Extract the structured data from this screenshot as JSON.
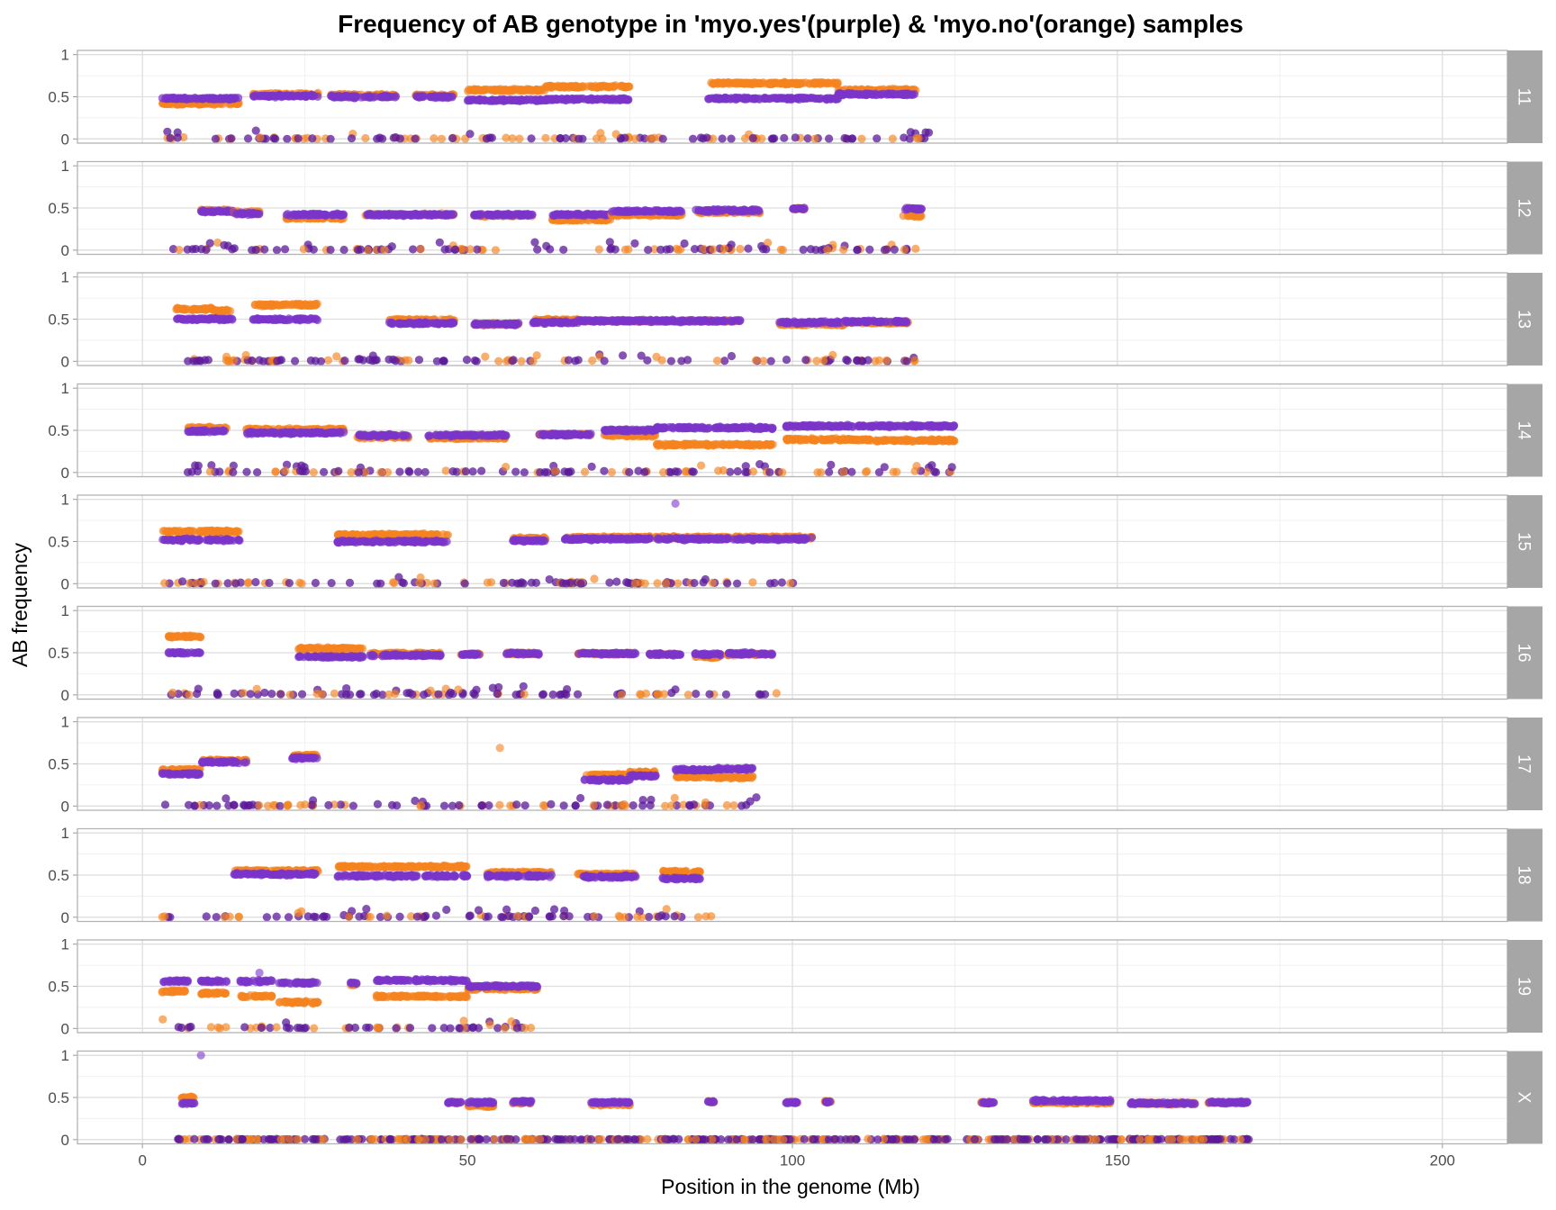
{
  "chart_data": {
    "type": "scatter",
    "title": "Frequency of AB genotype in 'myo.yes'(purple) & 'myo.no'(orange) samples",
    "xlabel": "Position in the genome (Mb)",
    "ylabel": "AB frequency",
    "xlim": [
      -10,
      210
    ],
    "ylim": [
      -0.05,
      1.05
    ],
    "x_ticks": [
      0,
      50,
      100,
      150,
      200
    ],
    "y_ticks": [
      0,
      0.5,
      1
    ],
    "y_tick_labels": [
      "0",
      "0.5",
      "1"
    ],
    "grid": true,
    "legend": "none",
    "colors": {
      "myo_yes": "#7b35c9",
      "myo_no": "#f5821f",
      "zero_line": "#5c1a99",
      "strip": "#a6a6a6",
      "panel_border": "#b3b3b3"
    },
    "series": [
      {
        "color_key": "myo_yes",
        "description": "purple"
      },
      {
        "color_key": "myo_no",
        "description": "orange"
      }
    ],
    "panels": [
      {
        "label": "11",
        "start": 3,
        "end": 121,
        "zero_gaps": [],
        "segments": [
          {
            "x": [
              3,
              15
            ],
            "yes": 0.48,
            "no": 0.42
          },
          {
            "x": [
              17,
              27
            ],
            "yes": 0.51,
            "no": 0.53
          },
          {
            "x": [
              29,
              39
            ],
            "yes": 0.5,
            "no": 0.52
          },
          {
            "x": [
              42,
              48
            ],
            "yes": 0.5,
            "no": 0.52
          },
          {
            "x": [
              50,
              62
            ],
            "yes": 0.46,
            "no": 0.58
          },
          {
            "x": [
              62,
              75
            ],
            "yes": 0.47,
            "no": 0.62
          },
          {
            "x": [
              87,
              107
            ],
            "yes": 0.48,
            "no": 0.66
          },
          {
            "x": [
              107,
              119
            ],
            "yes": 0.53,
            "no": 0.58
          }
        ]
      },
      {
        "label": "12",
        "start": 3,
        "end": 120,
        "zero_gaps": [],
        "segments": [
          {
            "x": [
              9,
              14
            ],
            "yes": 0.46,
            "no": 0.47
          },
          {
            "x": [
              14,
              18
            ],
            "yes": 0.43,
            "no": 0.45
          },
          {
            "x": [
              22,
              31
            ],
            "yes": 0.42,
            "no": 0.38
          },
          {
            "x": [
              34,
              48
            ],
            "yes": 0.42,
            "no": 0.42
          },
          {
            "x": [
              51,
              60
            ],
            "yes": 0.42,
            "no": 0.41
          },
          {
            "x": [
              63,
              72
            ],
            "yes": 0.42,
            "no": 0.36
          },
          {
            "x": [
              72,
              83
            ],
            "yes": 0.46,
            "no": 0.42
          },
          {
            "x": [
              85,
              95
            ],
            "yes": 0.47,
            "no": 0.45
          },
          {
            "x": [
              100,
              102
            ],
            "yes": 0.49,
            "no": 0.49
          },
          {
            "x": [
              117,
              120
            ],
            "yes": 0.49,
            "no": 0.41
          }
        ]
      },
      {
        "label": "13",
        "start": 5,
        "end": 119,
        "zero_gaps": [],
        "segments": [
          {
            "x": [
              5,
              11
            ],
            "yes": 0.5,
            "no": 0.62
          },
          {
            "x": [
              11,
              14
            ],
            "yes": 0.5,
            "no": 0.6
          },
          {
            "x": [
              17,
              27
            ],
            "yes": 0.5,
            "no": 0.67
          },
          {
            "x": [
              38,
              48
            ],
            "yes": 0.45,
            "no": 0.49
          },
          {
            "x": [
              51,
              58
            ],
            "yes": 0.44,
            "no": 0.44
          },
          {
            "x": [
              60,
              67
            ],
            "yes": 0.46,
            "no": 0.49
          },
          {
            "x": [
              67,
              92
            ],
            "yes": 0.48,
            "no": 0.48
          },
          {
            "x": [
              98,
              108
            ],
            "yes": 0.46,
            "no": 0.44
          },
          {
            "x": [
              108,
              118
            ],
            "yes": 0.47,
            "no": 0.46
          }
        ]
      },
      {
        "label": "14",
        "start": 6,
        "end": 125,
        "zero_gaps": [],
        "segments": [
          {
            "x": [
              7,
              13
            ],
            "yes": 0.49,
            "no": 0.53
          },
          {
            "x": [
              16,
              31
            ],
            "yes": 0.47,
            "no": 0.51
          },
          {
            "x": [
              33,
              41
            ],
            "yes": 0.44,
            "no": 0.42
          },
          {
            "x": [
              44,
              56
            ],
            "yes": 0.44,
            "no": 0.41
          },
          {
            "x": [
              61,
              69
            ],
            "yes": 0.45,
            "no": 0.45
          },
          {
            "x": [
              71,
              79
            ],
            "yes": 0.5,
            "no": 0.44
          },
          {
            "x": [
              79,
              97
            ],
            "yes": 0.53,
            "no": 0.33
          },
          {
            "x": [
              99,
              112
            ],
            "yes": 0.55,
            "no": 0.39
          },
          {
            "x": [
              112,
              125
            ],
            "yes": 0.55,
            "no": 0.38
          }
        ]
      },
      {
        "label": "15",
        "start": 3,
        "end": 104,
        "zero_gaps": [],
        "segments": [
          {
            "x": [
              3,
              15
            ],
            "yes": 0.52,
            "no": 0.62
          },
          {
            "x": [
              30,
              47
            ],
            "yes": 0.5,
            "no": 0.58
          },
          {
            "x": [
              57,
              62
            ],
            "yes": 0.51,
            "no": 0.54
          },
          {
            "x": [
              65,
              103
            ],
            "yes": 0.53,
            "no": 0.55
          }
        ]
      },
      {
        "label": "16",
        "start": 4,
        "end": 98,
        "zero_gaps": [],
        "segments": [
          {
            "x": [
              4,
              9
            ],
            "yes": 0.5,
            "no": 0.69
          },
          {
            "x": [
              24,
              34
            ],
            "yes": 0.45,
            "no": 0.55
          },
          {
            "x": [
              35,
              46
            ],
            "yes": 0.47,
            "no": 0.49
          },
          {
            "x": [
              49,
              52
            ],
            "yes": 0.48,
            "no": 0.48
          },
          {
            "x": [
              56,
              61
            ],
            "yes": 0.49,
            "no": 0.49
          },
          {
            "x": [
              67,
              76
            ],
            "yes": 0.49,
            "no": 0.49
          },
          {
            "x": [
              78,
              83
            ],
            "yes": 0.48,
            "no": 0.48
          },
          {
            "x": [
              85,
              89
            ],
            "yes": 0.48,
            "no": 0.45
          },
          {
            "x": [
              90,
              97
            ],
            "yes": 0.49,
            "no": 0.48
          }
        ]
      },
      {
        "label": "17",
        "start": 3,
        "end": 95,
        "zero_gaps": [],
        "segments": [
          {
            "x": [
              3,
              9
            ],
            "yes": 0.38,
            "no": 0.43
          },
          {
            "x": [
              9,
              16
            ],
            "yes": 0.52,
            "no": 0.54
          },
          {
            "x": [
              23,
              27
            ],
            "yes": 0.57,
            "no": 0.6
          },
          {
            "x": [
              68,
              75
            ],
            "yes": 0.31,
            "no": 0.37
          },
          {
            "x": [
              75,
              79
            ],
            "yes": 0.36,
            "no": 0.4
          },
          {
            "x": [
              82,
              88
            ],
            "yes": 0.43,
            "no": 0.35
          },
          {
            "x": [
              88,
              94
            ],
            "yes": 0.44,
            "no": 0.34
          }
        ]
      },
      {
        "label": "18",
        "start": 3,
        "end": 89,
        "zero_gaps": [],
        "segments": [
          {
            "x": [
              14,
              27
            ],
            "yes": 0.51,
            "no": 0.55
          },
          {
            "x": [
              30,
              50
            ],
            "yes": 0.49,
            "no": 0.6
          },
          {
            "x": [
              53,
              63
            ],
            "yes": 0.49,
            "no": 0.53
          },
          {
            "x": [
              67,
              76
            ],
            "yes": 0.48,
            "no": 0.51
          },
          {
            "x": [
              80,
              86
            ],
            "yes": 0.46,
            "no": 0.54
          }
        ]
      },
      {
        "label": "19",
        "start": 3,
        "end": 60,
        "zero_gaps": [],
        "segments": [
          {
            "x": [
              3,
              7
            ],
            "yes": 0.56,
            "no": 0.44
          },
          {
            "x": [
              9,
              13
            ],
            "yes": 0.56,
            "no": 0.42
          },
          {
            "x": [
              15,
              20
            ],
            "yes": 0.56,
            "no": 0.38
          },
          {
            "x": [
              21,
              27
            ],
            "yes": 0.54,
            "no": 0.31
          },
          {
            "x": [
              32,
              33
            ],
            "yes": 0.54,
            "no": 0.52
          },
          {
            "x": [
              36,
              50
            ],
            "yes": 0.57,
            "no": 0.38
          },
          {
            "x": [
              50,
              61
            ],
            "yes": 0.5,
            "no": 0.47
          }
        ]
      },
      {
        "label": "X",
        "start": 5,
        "end": 171,
        "zero_gaps": [
          [
            28,
            30
          ],
          [
            124,
            126
          ]
        ],
        "segments": [
          {
            "x": [
              6,
              8
            ],
            "yes": 0.43,
            "no": 0.5
          },
          {
            "x": [
              47,
              49
            ],
            "yes": 0.44,
            "no": 0.44
          },
          {
            "x": [
              50,
              54
            ],
            "yes": 0.44,
            "no": 0.4
          },
          {
            "x": [
              57,
              60
            ],
            "yes": 0.45,
            "no": 0.44
          },
          {
            "x": [
              69,
              75
            ],
            "yes": 0.44,
            "no": 0.42
          },
          {
            "x": [
              87,
              88
            ],
            "yes": 0.45,
            "no": 0.45
          },
          {
            "x": [
              99,
              101
            ],
            "yes": 0.44,
            "no": 0.44
          },
          {
            "x": [
              105,
              106
            ],
            "yes": 0.45,
            "no": 0.45
          },
          {
            "x": [
              129,
              131
            ],
            "yes": 0.44,
            "no": 0.44
          },
          {
            "x": [
              137,
              149
            ],
            "yes": 0.46,
            "no": 0.44
          },
          {
            "x": [
              152,
              162
            ],
            "yes": 0.43,
            "no": 0.43
          },
          {
            "x": [
              164,
              170
            ],
            "yes": 0.44,
            "no": 0.44
          }
        ]
      }
    ],
    "outliers": [
      {
        "panel": "15",
        "x": 82,
        "y": 0.95,
        "series": "myo_yes"
      },
      {
        "panel": "17",
        "x": 55,
        "y": 0.69,
        "series": "myo_no"
      },
      {
        "panel": "19",
        "x": 18,
        "y": 0.66,
        "series": "myo_yes"
      },
      {
        "panel": "X",
        "x": 9,
        "y": 1.0,
        "series": "myo_yes"
      }
    ]
  }
}
